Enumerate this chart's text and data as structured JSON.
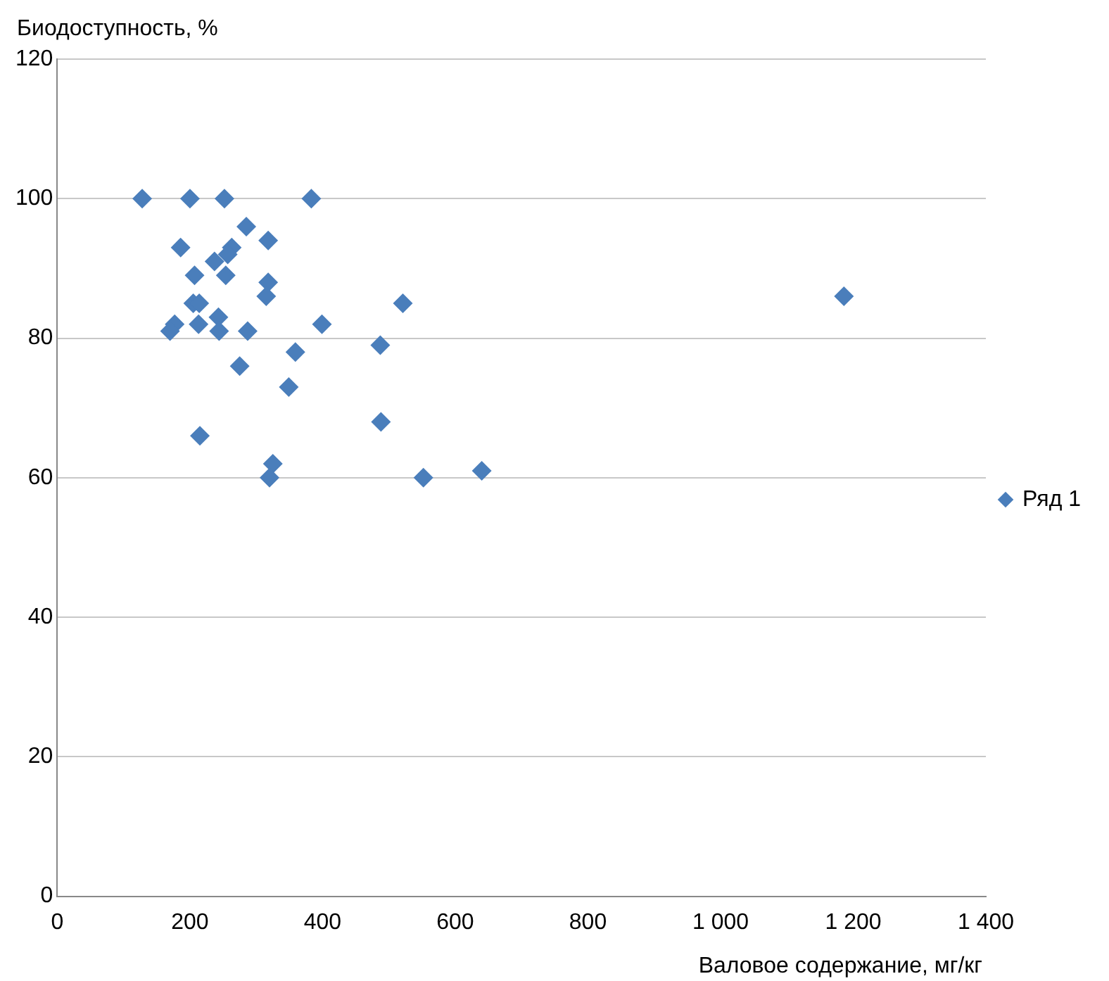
{
  "chart_data": {
    "type": "scatter",
    "xlabel": "Валовое содержание, мг/кг",
    "ylabel": "Биодоступность, %",
    "xlim": [
      0,
      1400
    ],
    "xticks": [
      0,
      200,
      400,
      600,
      800,
      {
        "value": 1000,
        "label": "1 000"
      },
      {
        "value": 1200,
        "label": "1 200"
      },
      {
        "value": 1400,
        "label": "1 400"
      }
    ],
    "ylim": [
      0,
      120
    ],
    "yticks": [
      0,
      20,
      40,
      60,
      80,
      100,
      120
    ],
    "grid": "y",
    "legend": "right",
    "marker": "diamond",
    "series": [
      {
        "name": "Ряд 1",
        "color": "#4a7ebb",
        "x": [
          128,
          200,
          252,
          383,
          285,
          186,
          318,
          263,
          257,
          237,
          207,
          254,
          318,
          315,
          205,
          214,
          521,
          177,
          170,
          213,
          243,
          244,
          287,
          399,
          487,
          359,
          275,
          349,
          488,
          215,
          325,
          320,
          552,
          640,
          1186
        ],
        "values": [
          100,
          100,
          100,
          100,
          96,
          93,
          94,
          93,
          92,
          91,
          89,
          89,
          88,
          86,
          85,
          85,
          85,
          82,
          81,
          82,
          83,
          81,
          81,
          82,
          79,
          78,
          76,
          73,
          68,
          66,
          62,
          60,
          60,
          61,
          86
        ]
      }
    ]
  }
}
